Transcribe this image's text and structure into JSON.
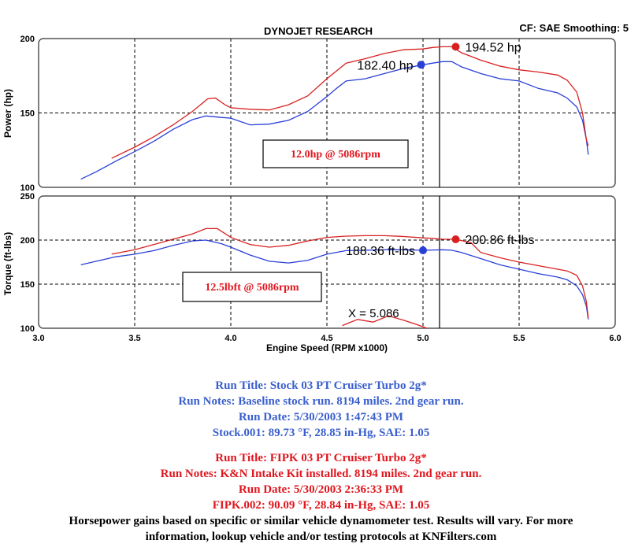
{
  "header": {
    "title": "DYNOJET RESEARCH",
    "cf_label": "CF: SAE  Smoothing: 5"
  },
  "colors": {
    "stock": "#2a3fd6",
    "fipk": "#d92020",
    "stock_text": "#3a5fcd",
    "fipk_text": "#e0161e"
  },
  "chart_data": [
    {
      "type": "line",
      "title": "",
      "xlabel": "Engine Speed (RPM x1000)",
      "ylabel": "Power (hp)",
      "xlim": [
        3.0,
        6.0
      ],
      "ylim": [
        100,
        200
      ],
      "yticks": [
        "200",
        "150",
        "100"
      ],
      "grid": true,
      "vline_x": 5.086,
      "annotation_box": "12.0hp @ 5086rpm",
      "series": [
        {
          "name": "Stock (hp)",
          "x": [
            3.22,
            3.3,
            3.4,
            3.5,
            3.6,
            3.7,
            3.8,
            3.87,
            3.95,
            4.0,
            4.1,
            4.2,
            4.3,
            4.4,
            4.5,
            4.55,
            4.6,
            4.7,
            4.8,
            4.9,
            5.0,
            5.05,
            5.1,
            5.15,
            5.2,
            5.3,
            5.4,
            5.5,
            5.6,
            5.7,
            5.75,
            5.8,
            5.83,
            5.85,
            5.86
          ],
          "y": [
            105.5,
            110.5,
            117.5,
            124,
            131,
            139,
            145.5,
            148,
            147,
            146.5,
            142,
            142.5,
            145,
            151,
            161,
            166.5,
            171.5,
            173,
            176.5,
            180,
            182.4,
            183.5,
            184.5,
            184.5,
            181,
            176.5,
            173,
            171.5,
            166.5,
            163.5,
            160,
            154,
            145,
            132,
            122
          ]
        },
        {
          "name": "FIPK (hp)",
          "x": [
            3.38,
            3.5,
            3.6,
            3.7,
            3.8,
            3.88,
            3.92,
            3.97,
            4.0,
            4.1,
            4.2,
            4.3,
            4.4,
            4.5,
            4.6,
            4.7,
            4.8,
            4.9,
            5.0,
            5.05,
            5.1,
            5.15,
            5.2,
            5.3,
            5.4,
            5.5,
            5.6,
            5.7,
            5.75,
            5.8,
            5.83,
            5.85,
            5.86
          ],
          "y": [
            119.5,
            127,
            134,
            142,
            151,
            159.5,
            160,
            155.5,
            153.5,
            152.5,
            152,
            155.5,
            161.5,
            173,
            183.5,
            186.5,
            190,
            192.5,
            193,
            194,
            194.5,
            194.52,
            190.5,
            185.5,
            181.5,
            179,
            177.5,
            175.5,
            172,
            164,
            150,
            132,
            128
          ]
        }
      ],
      "markers": [
        {
          "label": "182.40 hp",
          "series": "Stock (hp)",
          "x": 4.99,
          "y": 182.4
        },
        {
          "label": "194.52 hp",
          "series": "FIPK (hp)",
          "x": 5.17,
          "y": 194.52
        }
      ]
    },
    {
      "type": "line",
      "title": "",
      "xlabel": "Engine Speed (RPM x1000)",
      "ylabel": "Torque (ft-lbs)",
      "xlim": [
        3.0,
        6.0
      ],
      "ylim": [
        100,
        250
      ],
      "yticks": [
        "250",
        "200",
        "150",
        "100"
      ],
      "xticks": [
        "3.0",
        "3.5",
        "4.0",
        "4.5",
        "5.0",
        "5.5",
        "6.0"
      ],
      "grid": true,
      "vline_x": 5.086,
      "x_readout": "X = 5.086",
      "annotation_box": "12.5lbft @ 5086rpm",
      "series": [
        {
          "name": "Stock (ft-lbs)",
          "x": [
            3.22,
            3.3,
            3.4,
            3.5,
            3.6,
            3.7,
            3.8,
            3.87,
            3.95,
            4.0,
            4.1,
            4.2,
            4.3,
            4.4,
            4.5,
            4.6,
            4.7,
            4.8,
            4.9,
            5.0,
            5.1,
            5.15,
            5.2,
            5.3,
            5.4,
            5.5,
            5.6,
            5.7,
            5.75,
            5.8,
            5.83,
            5.85,
            5.86
          ],
          "y": [
            172,
            176,
            181,
            184,
            188,
            194,
            199,
            200,
            196,
            192,
            183,
            176,
            174,
            177,
            184,
            188,
            188.5,
            189,
            189,
            188.36,
            189,
            188.5,
            186,
            179,
            172,
            167,
            162,
            158,
            155,
            148,
            138,
            125,
            110
          ]
        },
        {
          "name": "FIPK (ft-lbs)",
          "x": [
            3.38,
            3.5,
            3.6,
            3.7,
            3.8,
            3.87,
            3.93,
            4.0,
            4.1,
            4.2,
            4.3,
            4.4,
            4.5,
            4.6,
            4.7,
            4.8,
            4.9,
            5.0,
            5.05,
            5.1,
            5.17,
            5.25,
            5.3,
            5.4,
            5.5,
            5.6,
            5.7,
            5.75,
            5.8,
            5.83,
            5.85,
            5.86
          ],
          "y": [
            184,
            189,
            195,
            201,
            207,
            213,
            213,
            203,
            195,
            192,
            194,
            199,
            203,
            204.5,
            205,
            205,
            204,
            202.5,
            202,
            201,
            200.86,
            197,
            186,
            180,
            175,
            171,
            167,
            165,
            160,
            148,
            130,
            112
          ]
        },
        {
          "name": "X readout trace",
          "x": [
            4.58,
            4.66,
            4.74,
            4.82,
            4.9,
            4.97,
            5.02
          ],
          "y": [
            103,
            110,
            107,
            114,
            109,
            104,
            100
          ]
        }
      ],
      "markers": [
        {
          "label": "188.36 ft-lbs",
          "series": "Stock (ft-lbs)",
          "x": 5.0,
          "y": 188.36
        },
        {
          "label": "200.86 ft-lbs",
          "series": "FIPK (ft-lbs)",
          "x": 5.17,
          "y": 200.86
        }
      ]
    }
  ],
  "stock_notes": [
    "Run Title: Stock 03 PT Cruiser  Turbo 2g*",
    "Run Notes: Baseline stock run. 8194 miles. 2nd gear run.",
    "Run Date: 5/30/2003 1:47:43 PM",
    "Stock.001: 89.73 °F, 28.85 in-Hg, SAE: 1.05"
  ],
  "fipk_notes": [
    "Run Title: FIPK 03 PT Cruiser Turbo 2g*",
    "Run Notes: K&N Intake Kit installed. 8194 miles. 2nd gear run.",
    "Run Date: 5/30/2003 2:36:33 PM",
    "FIPK.002: 90.09 °F, 28.84 in-Hg, SAE: 1.05"
  ],
  "disclaimer": [
    "Horsepower gains based on specific or similar vehicle dynamometer test. Results will vary. For more",
    "information, lookup vehicle and/or testing protocols at KNFilters.com"
  ]
}
